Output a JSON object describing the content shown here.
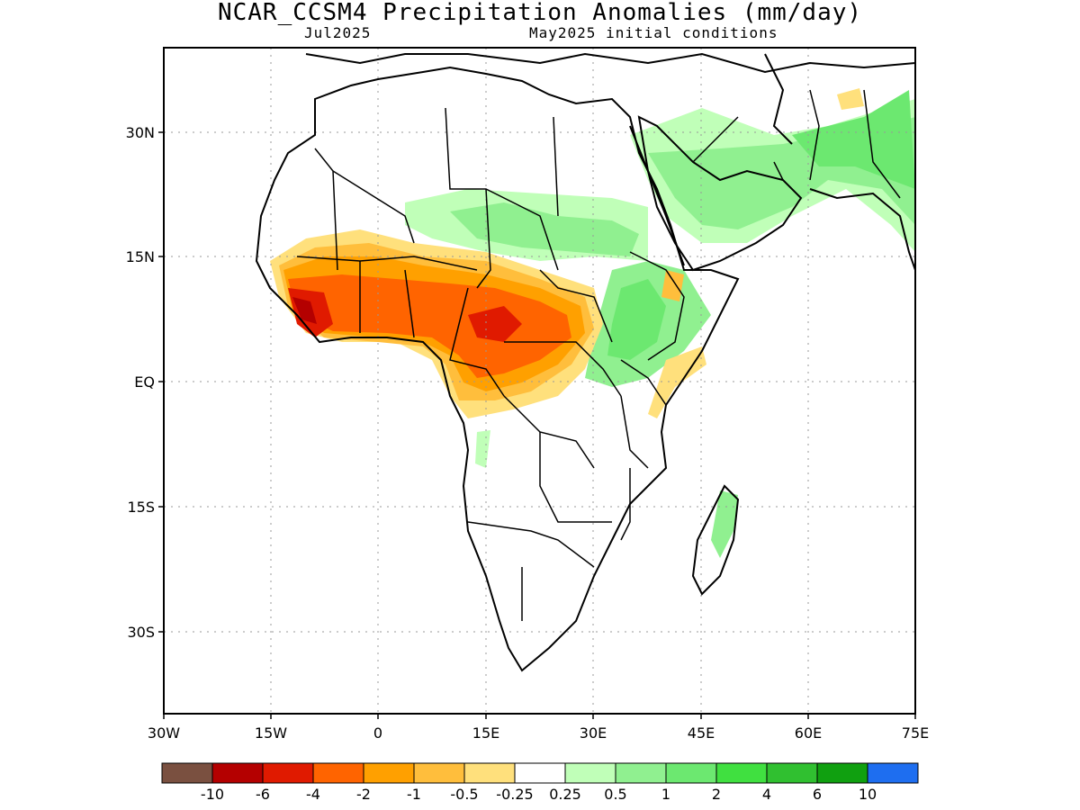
{
  "header": {
    "title": "NCAR_CCSM4 Precipitation Anomalies (mm/day)",
    "valid_month": "Jul2025",
    "init": "May2025 initial conditions"
  },
  "map": {
    "lat_labels": [
      "30N",
      "15N",
      "EQ",
      "15S",
      "30S"
    ],
    "lon_labels": [
      "30W",
      "15W",
      "0",
      "15E",
      "30E",
      "45E",
      "60E",
      "75E"
    ],
    "lon_range": [
      -30,
      75
    ],
    "lat_range": [
      -40,
      40
    ]
  },
  "legend": {
    "colors": [
      "#7a5040",
      "#b40000",
      "#e01a00",
      "#ff6400",
      "#ffa000",
      "#ffbe3c",
      "#ffe07c",
      "#ffffff",
      "#c0ffb8",
      "#90f090",
      "#6ce870",
      "#40e040",
      "#30c030",
      "#10a010",
      "#1e6ef0"
    ],
    "labels": [
      "-10",
      "-6",
      "-4",
      "-2",
      "-1",
      "-0.5",
      "-0.25",
      "0.25",
      "0.5",
      "1",
      "2",
      "4",
      "6",
      "10"
    ]
  }
}
